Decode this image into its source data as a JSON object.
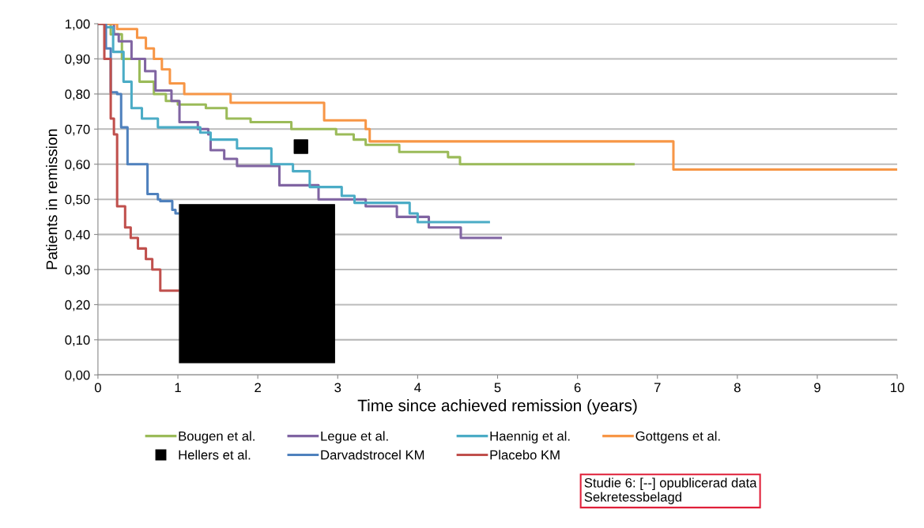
{
  "chart_data": {
    "type": "step",
    "xlabel": "Time since achieved remission (years)",
    "ylabel": "Patients in remission",
    "xlim": [
      0,
      10
    ],
    "ylim": [
      0,
      1
    ],
    "xticks": [
      0,
      1,
      2,
      3,
      4,
      5,
      6,
      7,
      8,
      9,
      10
    ],
    "yticks": [
      {
        "value": 0,
        "label": "0,00"
      },
      {
        "value": 0.1,
        "label": "0,10"
      },
      {
        "value": 0.2,
        "label": "0,20"
      },
      {
        "value": 0.3,
        "label": "0,30"
      },
      {
        "value": 0.4,
        "label": "0,40"
      },
      {
        "value": 0.5,
        "label": "0,50"
      },
      {
        "value": 0.6,
        "label": "0,60"
      },
      {
        "value": 0.7,
        "label": "0,70"
      },
      {
        "value": 0.8,
        "label": "0,80"
      },
      {
        "value": 0.9,
        "label": "0,90"
      },
      {
        "value": 1,
        "label": "1,00"
      }
    ],
    "grid": "y",
    "legend": "bottom",
    "series": [
      {
        "name": "Bougen et al.",
        "color": "#9bbb59",
        "x": [
          0,
          0.16,
          0.3,
          0.52,
          0.7,
          0.85,
          1.0,
          1.35,
          1.61,
          1.91,
          2.42,
          2.98,
          3.2,
          3.35,
          3.77,
          4.38,
          4.53,
          6.7
        ],
        "values": [
          1.0,
          0.97,
          0.9,
          0.835,
          0.8,
          0.78,
          0.77,
          0.76,
          0.73,
          0.72,
          0.7,
          0.685,
          0.67,
          0.655,
          0.635,
          0.62,
          0.6,
          0.6
        ]
      },
      {
        "name": "Legue et al.",
        "color": "#8064a2",
        "x": [
          0,
          0.2,
          0.26,
          0.42,
          0.59,
          0.72,
          0.92,
          1.02,
          1.25,
          1.38,
          1.41,
          1.58,
          1.74,
          2.27,
          2.76,
          3.35,
          3.74,
          4.14,
          4.54,
          5.04
        ],
        "values": [
          1.0,
          0.97,
          0.95,
          0.9,
          0.865,
          0.81,
          0.78,
          0.72,
          0.7,
          0.685,
          0.64,
          0.615,
          0.595,
          0.54,
          0.5,
          0.48,
          0.45,
          0.42,
          0.39,
          0.39
        ]
      },
      {
        "name": "Haennig et al.",
        "color": "#4bacc6",
        "x": [
          0,
          0.09,
          0.19,
          0.32,
          0.42,
          0.55,
          0.75,
          1.28,
          1.41,
          1.74,
          2.17,
          2.44,
          2.65,
          3.05,
          3.21,
          3.9,
          4.0,
          4.89
        ],
        "values": [
          1.0,
          0.99,
          0.92,
          0.835,
          0.76,
          0.73,
          0.705,
          0.69,
          0.67,
          0.645,
          0.6,
          0.58,
          0.535,
          0.51,
          0.49,
          0.46,
          0.435,
          0.435
        ]
      },
      {
        "name": "Gottgens et al.",
        "color": "#f79646",
        "x": [
          0,
          0.24,
          0.49,
          0.6,
          0.7,
          0.8,
          0.9,
          1.08,
          1.66,
          2.83,
          3.35,
          3.4,
          7.2,
          10
        ],
        "values": [
          1.0,
          0.985,
          0.96,
          0.93,
          0.9,
          0.87,
          0.83,
          0.8,
          0.775,
          0.725,
          0.7,
          0.665,
          0.585,
          0.585
        ]
      },
      {
        "name": "Hellers et al.",
        "type": "scatter",
        "marker": "square",
        "color": "#000000",
        "x": [
          2.54
        ],
        "values": [
          0.65
        ]
      },
      {
        "name": "Darvadstrocel KM",
        "color": "#4f81bd",
        "x": [
          0,
          0.1,
          0.16,
          0.24,
          0.29,
          0.37,
          0.52,
          0.62,
          0.75,
          0.78,
          0.93,
          0.97,
          1.0
        ],
        "values": [
          1.0,
          0.93,
          0.805,
          0.8,
          0.705,
          0.6,
          0.6,
          0.515,
          0.5,
          0.495,
          0.47,
          0.46,
          0.46
        ]
      },
      {
        "name": "Placebo KM",
        "color": "#c0504d",
        "x": [
          0,
          0.08,
          0.16,
          0.2,
          0.24,
          0.34,
          0.41,
          0.5,
          0.6,
          0.68,
          0.78,
          1.0
        ],
        "values": [
          1.0,
          0.9,
          0.73,
          0.685,
          0.48,
          0.42,
          0.39,
          0.36,
          0.33,
          0.3,
          0.24,
          0.24
        ]
      }
    ],
    "annotations": [
      "Studie 6: [--] opublicerad data\nSekretessbelagd"
    ]
  }
}
